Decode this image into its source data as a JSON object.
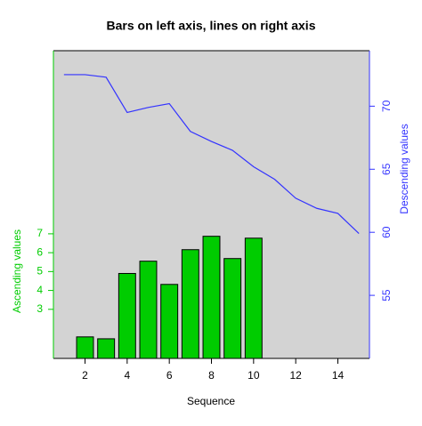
{
  "chart_data": {
    "type": "bar_line_dual",
    "title": "Bars on left axis, lines on right axis",
    "x_label": "Sequence",
    "y_label": "Ascending values",
    "y2_label": "Descending values",
    "xlim": [
      0.5,
      15.5
    ],
    "xticks": [
      2,
      4,
      6,
      8,
      10,
      12,
      14
    ],
    "ylim": [
      0.4,
      16.7
    ],
    "yticks": [
      3,
      4,
      5,
      6,
      7
    ],
    "y2lim": [
      50,
      74.4
    ],
    "y2ticks": [
      55,
      60,
      65,
      70
    ],
    "series": [
      {
        "kind": "bar",
        "color": "#00cc00",
        "x": [
          2,
          3,
          4,
          5,
          6,
          7,
          8,
          9,
          10
        ],
        "values": [
          1.54,
          1.44,
          4.9,
          5.55,
          4.32,
          6.16,
          6.87,
          5.69,
          6.77
        ]
      },
      {
        "kind": "line",
        "axis": "y2",
        "color": "#3333ff",
        "x": [
          1,
          2,
          3,
          4,
          5,
          6,
          7,
          8,
          9,
          10,
          11,
          12,
          13,
          14,
          15
        ],
        "values": [
          72.5,
          72.5,
          72.3,
          69.5,
          69.9,
          70.2,
          68.0,
          67.2,
          66.5,
          65.2,
          64.2,
          62.7,
          61.9,
          61.5,
          59.9
        ]
      }
    ]
  }
}
